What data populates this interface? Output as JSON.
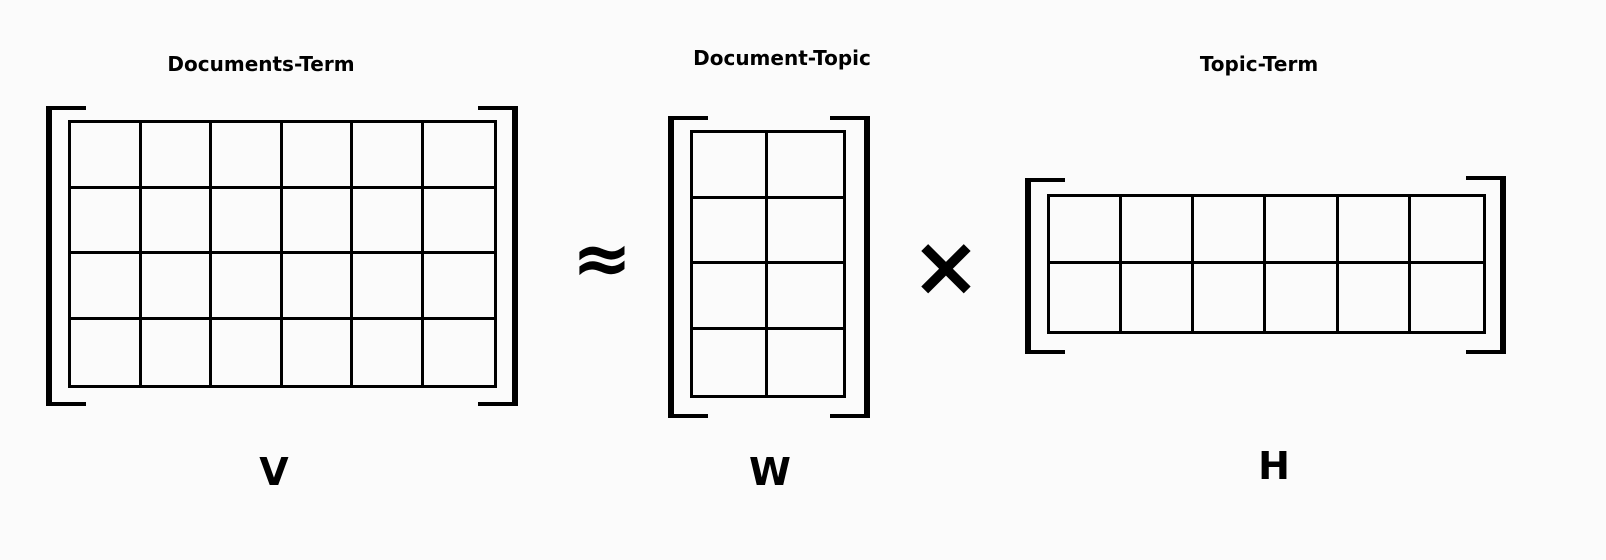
{
  "matrices": {
    "v": {
      "title": "Documents-Term",
      "label": "V",
      "rows": 4,
      "cols": 6
    },
    "w": {
      "title": "Document-Topic",
      "label": "W",
      "rows": 4,
      "cols": 2
    },
    "h": {
      "title": "Topic-Term",
      "label": "H",
      "rows": 2,
      "cols": 6
    }
  },
  "operators": {
    "approx": "≈",
    "times": "×"
  }
}
